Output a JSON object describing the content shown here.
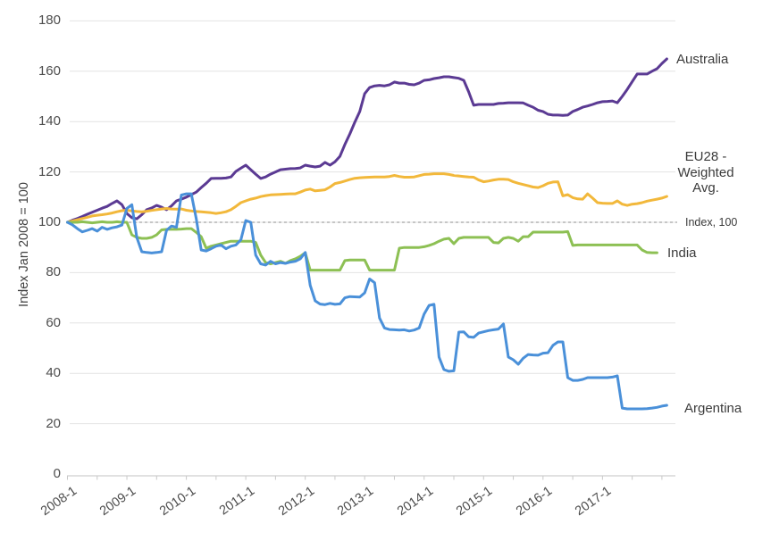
{
  "y_axis": {
    "title": "Index Jan 2008 = 100",
    "ticks": [
      0,
      20,
      40,
      60,
      80,
      100,
      120,
      140,
      160,
      180
    ],
    "range": [
      0,
      180
    ]
  },
  "x_axis": {
    "tick_labels": [
      "2008-1",
      "2009-1",
      "2010-1",
      "2011-1",
      "2012-1",
      "2013-1",
      "2014-1",
      "2015-1",
      "2016-1",
      "2017-1"
    ],
    "minor_tick_every_months": 6
  },
  "annotations": {
    "index_line": {
      "label": "Index, 100",
      "value": 100
    }
  },
  "colors": {
    "background": "#ffffff",
    "gridline": "#e2e2e2",
    "axis_line": "#cfcfcf",
    "minor_tick": "#c8c8c8",
    "reference_line": "#8c8c8c",
    "tick_text": "#4d4d4d",
    "label_text": "#3b3b3b"
  },
  "chart_data": {
    "type": "line",
    "title": "",
    "xlabel": "",
    "ylabel": "Index Jan 2008 = 100",
    "ylim": [
      0,
      180
    ],
    "grid": "horizontal",
    "x_start": "2008-1",
    "frequency": "monthly",
    "legend_position": "end-of-line labels at right",
    "series": [
      {
        "name": "Australia",
        "label_lines": [
          "Australia"
        ],
        "color": "#5b3a93",
        "values": [
          100,
          100.8,
          101.5,
          102.3,
          103.2,
          104,
          104.8,
          105.6,
          106.3,
          107.5,
          108.5,
          107,
          103.5,
          101.8,
          101.4,
          103,
          105,
          105.7,
          106.7,
          106,
          105,
          106.5,
          108.5,
          109.2,
          110,
          111,
          112,
          113.8,
          115.5,
          117.4,
          117.5,
          117.5,
          117.6,
          118,
          120.2,
          121.5,
          122.7,
          120.9,
          119.1,
          117.4,
          118,
          119.1,
          120,
          120.9,
          121.1,
          121.3,
          121.4,
          121.6,
          122.7,
          122.3,
          122,
          122.3,
          123.8,
          122.7,
          124,
          126.2,
          130.9,
          135.1,
          139.7,
          144,
          151.1,
          153.5,
          154.2,
          154.4,
          154.2,
          154.6,
          155.7,
          155.3,
          155.3,
          154.8,
          154.6,
          155.3,
          156.4,
          156.6,
          157.1,
          157.4,
          157.8,
          157.8,
          157.5,
          157.2,
          156.4,
          151.8,
          146.5,
          146.8,
          146.8,
          146.8,
          146.8,
          147.2,
          147.3,
          147.5,
          147.5,
          147.5,
          147.4,
          146.5,
          145.7,
          144.5,
          144,
          142.9,
          142.6,
          142.6,
          142.5,
          142.6,
          144,
          144.8,
          145.7,
          146.2,
          146.8,
          147.5,
          147.9,
          148,
          148.2,
          147.5,
          150,
          152.8,
          155.8,
          158.9,
          158.9,
          158.9,
          160,
          161,
          163.1,
          164.9
        ]
      },
      {
        "name": "EU28 - Weighted Avg.",
        "label_lines": [
          "EU28 -",
          "Weighted",
          "Avg."
        ],
        "color": "#f2b83b",
        "values": [
          100,
          100.5,
          101,
          101.5,
          102,
          102.5,
          102.8,
          103,
          103.3,
          103.7,
          104.2,
          104.6,
          104.8,
          104.5,
          104.3,
          104.2,
          104.4,
          104.7,
          105,
          105.3,
          105.5,
          105.3,
          105.2,
          105.3,
          104.8,
          104.5,
          104.3,
          104.2,
          104,
          103.8,
          103.5,
          103.8,
          104.2,
          105,
          106.3,
          107.8,
          108.5,
          109.2,
          109.6,
          110.2,
          110.6,
          110.9,
          111,
          111.1,
          111.2,
          111.3,
          111.3,
          112,
          112.8,
          113.2,
          112.5,
          112.7,
          112.9,
          114,
          115.4,
          115.8,
          116.4,
          117,
          117.5,
          117.7,
          117.8,
          117.9,
          118,
          118,
          118,
          118.2,
          118.6,
          118.2,
          117.9,
          117.9,
          118,
          118.5,
          119,
          119.1,
          119.3,
          119.3,
          119.3,
          119,
          118.6,
          118.4,
          118.2,
          118,
          117.9,
          116.8,
          116.1,
          116.4,
          116.8,
          117.1,
          117.1,
          117,
          116.1,
          115.5,
          115,
          114.5,
          114,
          113.8,
          114.5,
          115.5,
          116,
          116.1,
          110.5,
          111,
          109.8,
          109.3,
          109.2,
          111.3,
          109.6,
          107.8,
          107.6,
          107.5,
          107.5,
          108.5,
          107.2,
          106.7,
          107.2,
          107.4,
          107.8,
          108.4,
          108.8,
          109.2,
          109.6,
          110.3
        ]
      },
      {
        "name": "India",
        "label_lines": [
          "India"
        ],
        "color": "#8dc054",
        "values": [
          100,
          100,
          100,
          100.2,
          100,
          99.8,
          100,
          100.2,
          100,
          100,
          100.2,
          100,
          100,
          95,
          94,
          93.6,
          93.6,
          94,
          95,
          97,
          97.2,
          97.2,
          97.2,
          97.3,
          97.5,
          97.5,
          96,
          94.3,
          89.7,
          90.5,
          91,
          91.5,
          92,
          92.5,
          92.5,
          92.5,
          92.5,
          92.5,
          92,
          87,
          84,
          83.5,
          84,
          84.5,
          83.7,
          84.8,
          85.5,
          86.5,
          87.9,
          81,
          81,
          81,
          81,
          81,
          81,
          81,
          84.8,
          85,
          85,
          85,
          85,
          81,
          81,
          81,
          81,
          81,
          81,
          89.7,
          90,
          90,
          90,
          90,
          90.3,
          90.8,
          91.5,
          92.5,
          93.3,
          93.6,
          91.5,
          93.6,
          94,
          94,
          94,
          94,
          94,
          94,
          92,
          91.8,
          93.6,
          94,
          93.6,
          92.5,
          94.3,
          94.3,
          96.1,
          96.1,
          96.1,
          96.1,
          96.1,
          96.1,
          96.1,
          96.3,
          90.8,
          91,
          91,
          91,
          91,
          91,
          91,
          91,
          91,
          91,
          91,
          91,
          91,
          91,
          89,
          88,
          87.9,
          87.9
        ]
      },
      {
        "name": "Argentina",
        "label_lines": [
          "Argentina"
        ],
        "color": "#4a90d9",
        "values": [
          100,
          99,
          97.5,
          96.2,
          96.8,
          97.5,
          96.5,
          98,
          97.2,
          97.8,
          98.2,
          98.9,
          105.5,
          107,
          94,
          88.3,
          88,
          87.8,
          88,
          88.3,
          96.8,
          98.5,
          98,
          110.8,
          111.3,
          111.3,
          101.4,
          89,
          88.6,
          89.5,
          90.5,
          91,
          89.5,
          90.5,
          91,
          93,
          100.7,
          100,
          87,
          83.5,
          83,
          84.5,
          83.5,
          84,
          83.7,
          84.2,
          84.5,
          85.5,
          88,
          75,
          68.8,
          67.5,
          67.3,
          67.8,
          67.4,
          67.6,
          70,
          70.5,
          70.4,
          70.3,
          72,
          77.5,
          76,
          62,
          58,
          57.4,
          57.3,
          57.2,
          57.3,
          56.8,
          57.2,
          58,
          63.5,
          67,
          67.4,
          46.5,
          41.5,
          40.8,
          41,
          56.4,
          56.5,
          54.5,
          54.3,
          56,
          56.5,
          57,
          57.3,
          57.6,
          59.6,
          46.5,
          45.4,
          43.6,
          46,
          47.5,
          47.3,
          47.2,
          48,
          48.2,
          51.1,
          52.5,
          52.5,
          38.3,
          37.2,
          37.2,
          37.6,
          38.3,
          38.3,
          38.3,
          38.3,
          38.3,
          38.5,
          39,
          26.2,
          25.9,
          25.9,
          25.9,
          25.9,
          26,
          26.2,
          26.5,
          27,
          27.3
        ]
      }
    ]
  }
}
